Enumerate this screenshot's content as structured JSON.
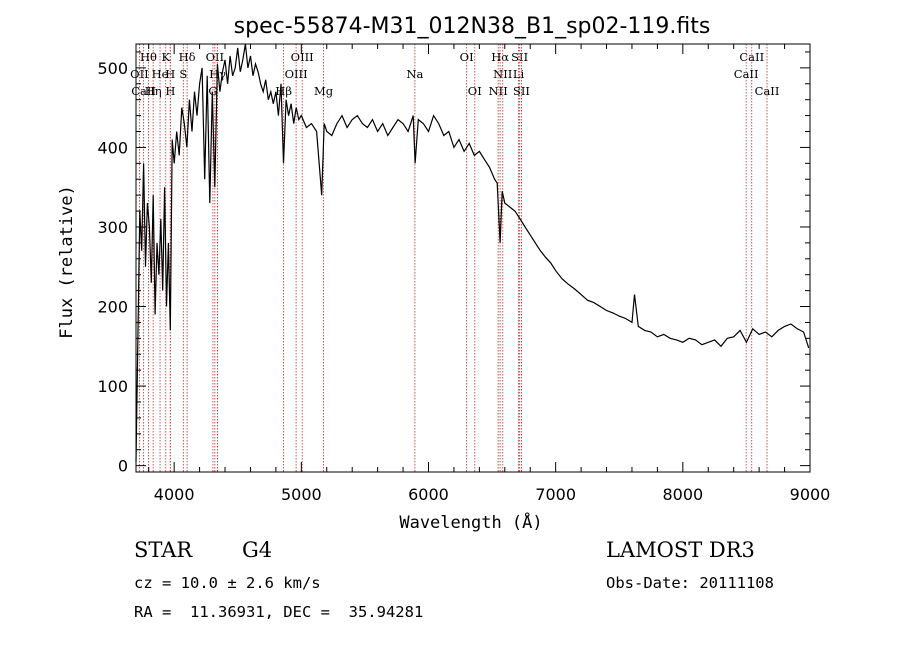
{
  "chart_data": {
    "type": "line",
    "title": "spec-55874-M31_012N38_B1_sp02-119.fits",
    "xlabel": "Wavelength (Å)",
    "ylabel": "Flux (relative)",
    "xlim": [
      3700,
      9000
    ],
    "ylim": [
      -8,
      530
    ],
    "xticks": [
      4000,
      5000,
      6000,
      7000,
      8000,
      9000
    ],
    "yticks": [
      0,
      100,
      200,
      300,
      400,
      500
    ],
    "xtick_labels": [
      "4000",
      "5000",
      "6000",
      "7000",
      "8000",
      "9000"
    ],
    "ytick_labels": [
      "0",
      "100",
      "200",
      "300",
      "400",
      "500"
    ],
    "series": [
      {
        "name": "flux",
        "x": [
          3700,
          3715,
          3730,
          3745,
          3760,
          3775,
          3790,
          3805,
          3820,
          3835,
          3850,
          3865,
          3880,
          3895,
          3910,
          3925,
          3940,
          3955,
          3970,
          3985,
          4000,
          4020,
          4040,
          4060,
          4080,
          4100,
          4120,
          4140,
          4160,
          4180,
          4200,
          4220,
          4240,
          4260,
          4280,
          4300,
          4320,
          4340,
          4360,
          4380,
          4400,
          4420,
          4440,
          4460,
          4480,
          4500,
          4520,
          4540,
          4560,
          4580,
          4600,
          4620,
          4640,
          4660,
          4680,
          4700,
          4720,
          4740,
          4760,
          4780,
          4800,
          4820,
          4840,
          4860,
          4880,
          4900,
          4920,
          4940,
          4960,
          4980,
          5000,
          5040,
          5080,
          5120,
          5160,
          5180,
          5200,
          5240,
          5280,
          5320,
          5360,
          5400,
          5440,
          5480,
          5520,
          5560,
          5600,
          5640,
          5680,
          5720,
          5760,
          5800,
          5840,
          5880,
          5895,
          5920,
          5960,
          6000,
          6040,
          6080,
          6120,
          6160,
          6200,
          6240,
          6280,
          6320,
          6360,
          6400,
          6440,
          6480,
          6520,
          6540,
          6563,
          6580,
          6600,
          6640,
          6680,
          6720,
          6760,
          6800,
          6840,
          6880,
          6920,
          6960,
          7000,
          7050,
          7100,
          7150,
          7200,
          7250,
          7300,
          7350,
          7400,
          7450,
          7500,
          7550,
          7600,
          7620,
          7650,
          7700,
          7750,
          7800,
          7850,
          7900,
          7950,
          8000,
          8050,
          8100,
          8150,
          8200,
          8250,
          8300,
          8350,
          8400,
          8450,
          8500,
          8550,
          8600,
          8650,
          8700,
          8750,
          8800,
          8850,
          8900,
          8950,
          8990
        ],
        "y": [
          5,
          160,
          320,
          270,
          380,
          250,
          330,
          300,
          230,
          340,
          190,
          280,
          240,
          310,
          220,
          350,
          200,
          280,
          170,
          410,
          380,
          420,
          390,
          450,
          430,
          400,
          460,
          420,
          470,
          440,
          480,
          500,
          360,
          490,
          330,
          470,
          350,
          505,
          470,
          495,
          510,
          480,
          515,
          490,
          500,
          525,
          495,
          510,
          530,
          500,
          515,
          490,
          505,
          495,
          480,
          470,
          485,
          460,
          470,
          455,
          470,
          440,
          480,
          380,
          460,
          440,
          455,
          430,
          450,
          435,
          440,
          425,
          430,
          420,
          340,
          430,
          420,
          415,
          430,
          440,
          425,
          435,
          440,
          430,
          425,
          435,
          420,
          430,
          415,
          425,
          435,
          430,
          420,
          440,
          380,
          435,
          430,
          420,
          440,
          430,
          415,
          420,
          400,
          410,
          395,
          405,
          390,
          395,
          385,
          375,
          360,
          355,
          280,
          345,
          330,
          325,
          320,
          310,
          300,
          290,
          280,
          270,
          262,
          255,
          245,
          235,
          228,
          222,
          215,
          208,
          205,
          200,
          195,
          192,
          188,
          185,
          180,
          215,
          175,
          170,
          168,
          162,
          165,
          160,
          158,
          155,
          160,
          158,
          152,
          155,
          158,
          150,
          160,
          162,
          170,
          155,
          172,
          165,
          168,
          162,
          170,
          175,
          178,
          172,
          168,
          148
        ]
      }
    ],
    "line_markers": [
      {
        "label": "Hθ",
        "x": 3798,
        "row": 1
      },
      {
        "label": "K",
        "x": 3934,
        "row": 1
      },
      {
        "label": "Hδ",
        "x": 4102,
        "row": 1
      },
      {
        "label": "OII",
        "x": 4320,
        "row": 1
      },
      {
        "label": "OIII",
        "x": 5007,
        "row": 1
      },
      {
        "label": "OI",
        "x": 6300,
        "row": 1
      },
      {
        "label": "Hα",
        "x": 6563,
        "row": 1
      },
      {
        "label": "SII",
        "x": 6717,
        "row": 1
      },
      {
        "label": "CaII",
        "x": 8542,
        "row": 1
      },
      {
        "label": "OII",
        "x": 3727,
        "row": 2
      },
      {
        "label": "He",
        "x": 3889,
        "row": 2
      },
      {
        "label": "H",
        "x": 3969,
        "row": 2
      },
      {
        "label": "S",
        "x": 4072,
        "row": 2
      },
      {
        "label": "Hγ",
        "x": 4341,
        "row": 2
      },
      {
        "label": "OIII",
        "x": 4959,
        "row": 2
      },
      {
        "label": "Na",
        "x": 5893,
        "row": 2
      },
      {
        "label": "NII",
        "x": 6584,
        "row": 2
      },
      {
        "label": "Li",
        "x": 6708,
        "row": 2
      },
      {
        "label": "CaII",
        "x": 8498,
        "row": 2
      },
      {
        "label": "CaII",
        "x": 3760,
        "row": 3
      },
      {
        "label": "Hη",
        "x": 3835,
        "row": 3
      },
      {
        "label": "H",
        "x": 3970,
        "row": 3
      },
      {
        "label": "G",
        "x": 4305,
        "row": 3
      },
      {
        "label": "Hβ",
        "x": 4861,
        "row": 3
      },
      {
        "label": "Mg",
        "x": 5175,
        "row": 3
      },
      {
        "label": "OI",
        "x": 6364,
        "row": 3
      },
      {
        "label": "NII",
        "x": 6548,
        "row": 3
      },
      {
        "label": "SII",
        "x": 6731,
        "row": 3
      },
      {
        "label": "CaII",
        "x": 8662,
        "row": 3
      }
    ],
    "colors": {
      "spectrum": "#000000",
      "marker_line": "#cc2a2a",
      "axis": "#000000",
      "background": "#ffffff"
    }
  },
  "info": {
    "object_type": "STAR",
    "subclass": "G4",
    "survey": "LAMOST DR3",
    "redshift_text": "cz = 10.0 ± 2.6 km/s",
    "obs_date_text": "Obs-Date: 20111108",
    "coords_text": "RA =  11.36931, DEC =  35.94281"
  }
}
